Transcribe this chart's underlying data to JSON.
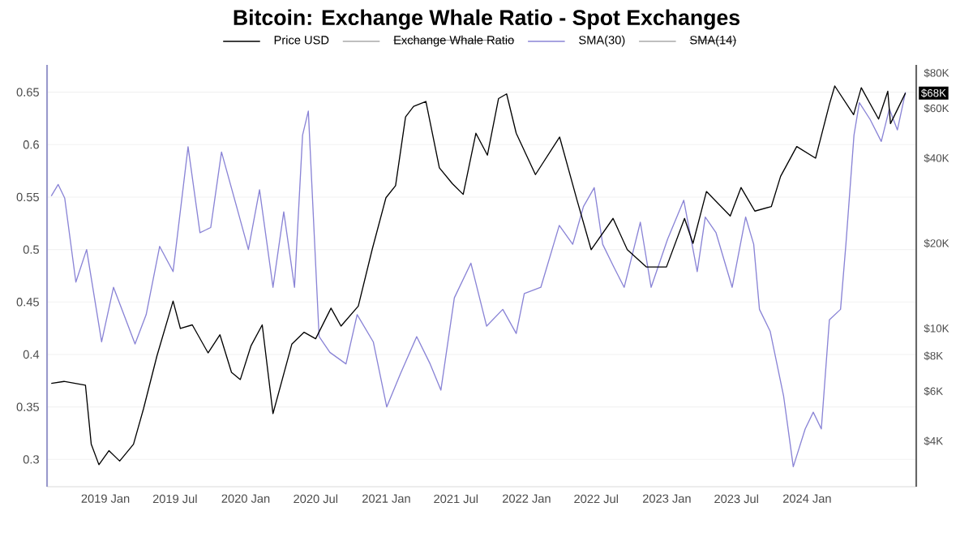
{
  "chart_data": {
    "type": "line",
    "title": "Bitcoin: Exchange Whale Ratio - Spot Exchanges",
    "series": [
      {
        "name": "Price USD",
        "color": "#000000",
        "axis": "y2",
        "x": [
          "2018-08-13",
          "2018-09-15",
          "2018-11-10",
          "2018-11-25",
          "2018-12-15",
          "2019-01-10",
          "2019-02-07",
          "2019-03-15",
          "2019-04-10",
          "2019-05-15",
          "2019-06-26",
          "2019-07-15",
          "2019-08-15",
          "2019-09-25",
          "2019-10-26",
          "2019-11-25",
          "2019-12-18",
          "2020-01-15",
          "2020-02-13",
          "2020-03-12",
          "2020-04-30",
          "2020-06-01",
          "2020-07-01",
          "2020-08-10",
          "2020-09-05",
          "2020-10-20",
          "2020-11-25",
          "2020-12-31",
          "2021-01-25",
          "2021-02-20",
          "2021-03-13",
          "2021-04-14",
          "2021-05-19",
          "2021-06-22",
          "2021-07-20",
          "2021-08-22",
          "2021-09-21",
          "2021-10-20",
          "2021-11-10",
          "2021-12-05",
          "2022-01-24",
          "2022-03-28",
          "2022-05-12",
          "2022-06-18",
          "2022-08-14",
          "2022-09-20",
          "2022-11-09",
          "2022-12-31",
          "2023-02-16",
          "2023-03-10",
          "2023-04-14",
          "2023-06-15",
          "2023-07-13",
          "2023-08-18",
          "2023-09-30",
          "2023-10-24",
          "2023-12-05",
          "2024-01-23",
          "2024-02-28",
          "2024-03-13",
          "2024-05-01",
          "2024-05-21",
          "2024-07-05",
          "2024-07-29",
          "2024-08-05",
          "2024-09-13"
        ],
        "values": [
          6400,
          6500,
          6300,
          3900,
          3300,
          3700,
          3400,
          3900,
          5200,
          8000,
          12500,
          10000,
          10300,
          8200,
          9500,
          7000,
          6600,
          8700,
          10300,
          5000,
          8800,
          9700,
          9200,
          11800,
          10200,
          12000,
          19000,
          29000,
          32000,
          56000,
          61000,
          63500,
          37000,
          32500,
          29800,
          49000,
          41000,
          65000,
          67500,
          49000,
          35000,
          47500,
          28500,
          19000,
          24500,
          19000,
          16500,
          16500,
          24500,
          20000,
          30500,
          25000,
          31500,
          26000,
          27000,
          34500,
          44000,
          40000,
          62000,
          72000,
          57000,
          71000,
          55000,
          69000,
          53000,
          68000
        ]
      },
      {
        "name": "Exchange Whale Ratio",
        "color": "#aaaaaa"
      },
      {
        "name": "SMA(30)",
        "color": "#8a84d6",
        "x": [
          "2018-08-13",
          "2018-08-31",
          "2018-09-17",
          "2018-10-16",
          "2018-11-13",
          "2018-12-22",
          "2019-01-22",
          "2019-03-19",
          "2019-04-17",
          "2019-05-22",
          "2019-06-26",
          "2019-08-04",
          "2019-09-04",
          "2019-10-02",
          "2019-10-30",
          "2019-12-12",
          "2020-01-08",
          "2020-02-06",
          "2020-03-12",
          "2020-04-09",
          "2020-05-07",
          "2020-05-28",
          "2020-06-12",
          "2020-07-10",
          "2020-08-07",
          "2020-09-18",
          "2020-10-17",
          "2020-11-28",
          "2021-01-02",
          "2021-02-06",
          "2021-03-21",
          "2021-04-25",
          "2021-05-23",
          "2021-06-27",
          "2021-08-09",
          "2021-09-19",
          "2021-10-31",
          "2021-12-05",
          "2021-12-26",
          "2022-02-07",
          "2022-03-27",
          "2022-05-01",
          "2022-05-29",
          "2022-06-26",
          "2022-07-18",
          "2022-08-15",
          "2022-09-12",
          "2022-10-03",
          "2022-10-24",
          "2022-11-21",
          "2023-01-03",
          "2023-02-14",
          "2023-03-21",
          "2023-04-11",
          "2023-05-09",
          "2023-06-20",
          "2023-07-25",
          "2023-08-15",
          "2023-08-30",
          "2023-09-27",
          "2023-11-01",
          "2023-11-26",
          "2023-12-27",
          "2024-01-17",
          "2024-02-07",
          "2024-02-28",
          "2024-03-28",
          "2024-04-11",
          "2024-05-02",
          "2024-05-16",
          "2024-06-13",
          "2024-07-12",
          "2024-08-02",
          "2024-08-23",
          "2024-09-13"
        ],
        "values": [
          0.551,
          0.562,
          0.549,
          0.469,
          0.5,
          0.412,
          0.464,
          0.41,
          0.438,
          0.503,
          0.479,
          0.598,
          0.516,
          0.521,
          0.593,
          0.536,
          0.5,
          0.557,
          0.464,
          0.536,
          0.464,
          0.609,
          0.632,
          0.417,
          0.402,
          0.391,
          0.438,
          0.412,
          0.35,
          0.381,
          0.417,
          0.391,
          0.366,
          0.454,
          0.487,
          0.427,
          0.443,
          0.42,
          0.458,
          0.464,
          0.523,
          0.505,
          0.541,
          0.559,
          0.505,
          0.484,
          0.464,
          0.495,
          0.526,
          0.464,
          0.51,
          0.547,
          0.479,
          0.531,
          0.516,
          0.464,
          0.531,
          0.505,
          0.443,
          0.422,
          0.36,
          0.293,
          0.329,
          0.345,
          0.329,
          0.433,
          0.443,
          0.505,
          0.609,
          0.64,
          0.624,
          0.603,
          0.634,
          0.614,
          0.65
        ]
      },
      {
        "name": "SMA(14)",
        "color": "#aaaaaa"
      }
    ],
    "xlim": [
      "2018-08-02",
      "2024-10-11"
    ],
    "xticks": [
      {
        "value": "2019-01-01",
        "label": "2019 Jan"
      },
      {
        "value": "2019-07-01",
        "label": "2019 Jul"
      },
      {
        "value": "2020-01-01",
        "label": "2020 Jan"
      },
      {
        "value": "2020-07-01",
        "label": "2020 Jul"
      },
      {
        "value": "2021-01-01",
        "label": "2021 Jan"
      },
      {
        "value": "2021-07-01",
        "label": "2021 Jul"
      },
      {
        "value": "2022-01-01",
        "label": "2022 Jan"
      },
      {
        "value": "2022-07-01",
        "label": "2022 Jul"
      },
      {
        "value": "2023-01-01",
        "label": "2023 Jan"
      },
      {
        "value": "2023-07-01",
        "label": "2023 Jul"
      },
      {
        "value": "2024-01-01",
        "label": "2024 Jan"
      }
    ],
    "ylim": [
      0.274,
      0.676
    ],
    "yticks": [
      0.3,
      0.35,
      0.4,
      0.45,
      0.5,
      0.55,
      0.6,
      0.65
    ],
    "y2lim": [
      2760,
      85500
    ],
    "y2ticks": [
      {
        "value": 4000,
        "label": "$4K"
      },
      {
        "value": 6000,
        "label": "$6K"
      },
      {
        "value": 8000,
        "label": "$8K"
      },
      {
        "value": 10000,
        "label": "$10K"
      },
      {
        "value": 20000,
        "label": "$20K"
      },
      {
        "value": 40000,
        "label": "$40K"
      },
      {
        "value": 60000,
        "label": "$60K"
      },
      {
        "value": 80000,
        "label": "$80K"
      }
    ],
    "log": "y2",
    "annotations": [
      "$68K"
    ],
    "grid": "y",
    "legend": "top"
  }
}
